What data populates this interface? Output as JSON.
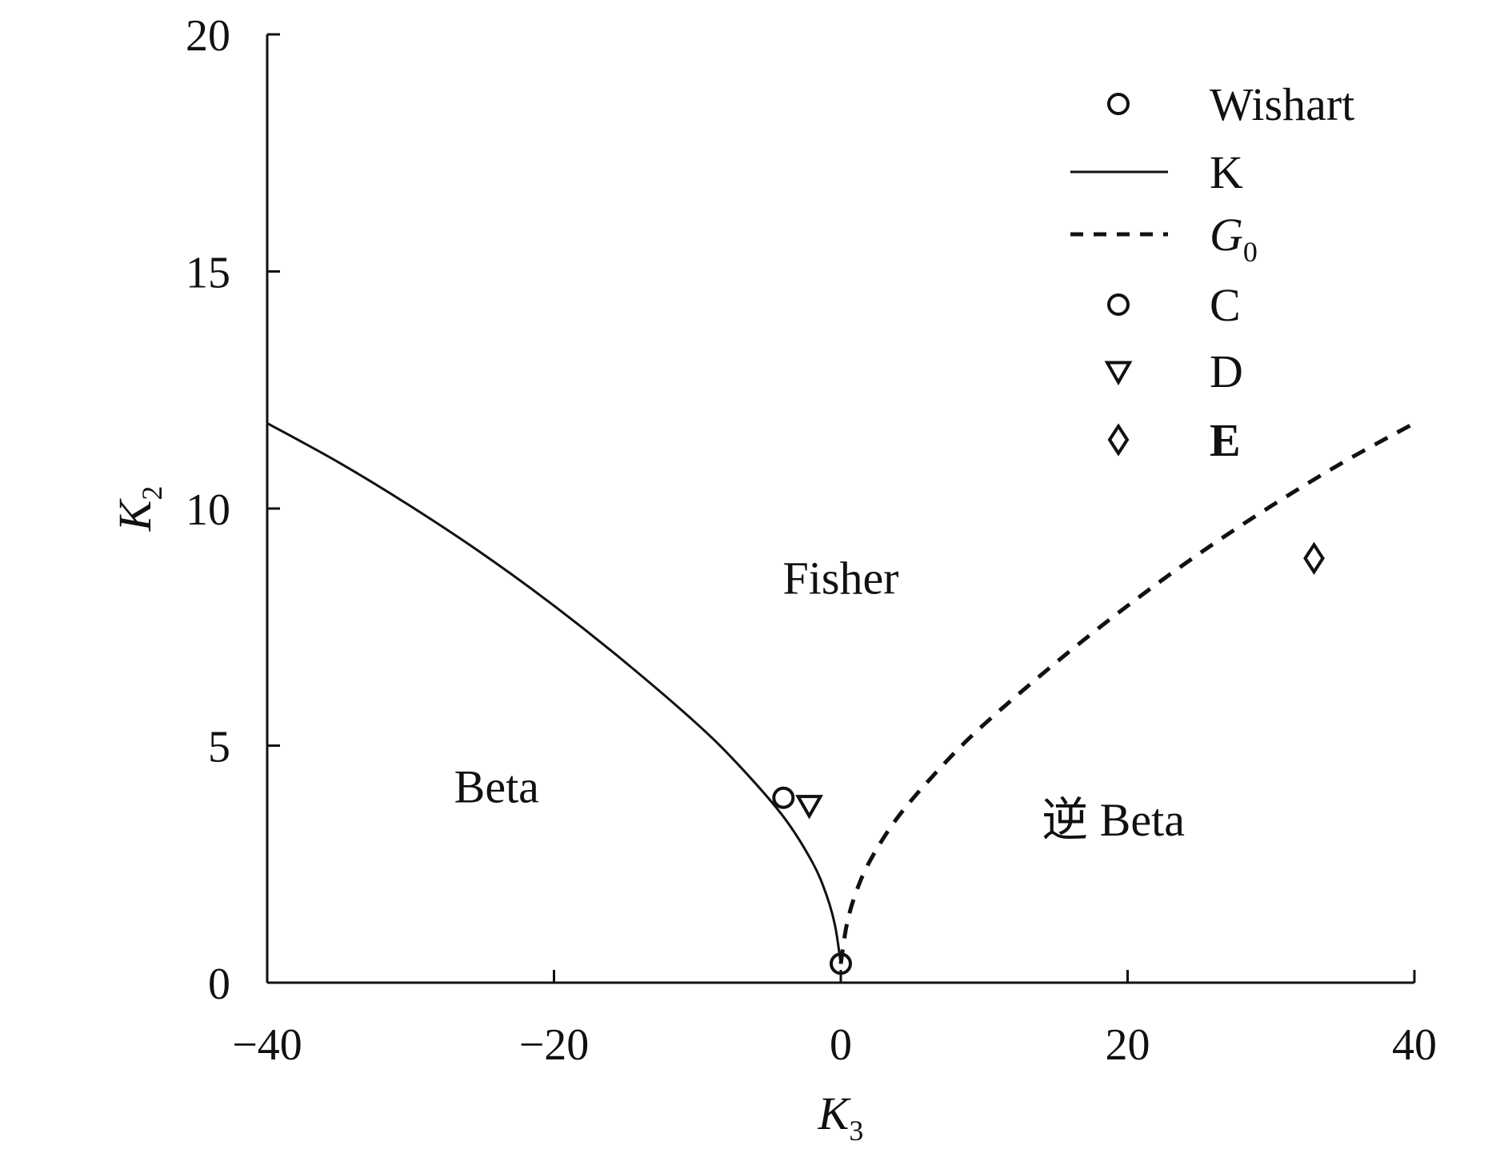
{
  "chart_data": {
    "type": "scatter",
    "title": "",
    "xlabel": {
      "main": "K",
      "sub": "3"
    },
    "ylabel": {
      "main": "K",
      "sub": "2"
    },
    "xlim": [
      -40,
      40
    ],
    "ylim": [
      0,
      20
    ],
    "x_ticks": [
      -40,
      -20,
      0,
      20,
      40
    ],
    "x_tick_labels": [
      "−40",
      "−20",
      "0",
      "20",
      "40"
    ],
    "y_ticks": [
      0,
      5,
      10,
      15,
      20
    ],
    "y_tick_labels": [
      "0",
      "5",
      "10",
      "15",
      "20"
    ],
    "grid": false,
    "legend_position": "top-right",
    "series": [
      {
        "name": "Wishart",
        "marker": "circle",
        "points": [
          {
            "x": 0,
            "y": 0.4
          }
        ]
      },
      {
        "name": "K",
        "line": "solid",
        "points": [
          {
            "x": -40,
            "y": 11.8
          },
          {
            "x": -35,
            "y": 10.97
          },
          {
            "x": -30,
            "y": 10.05
          },
          {
            "x": -25,
            "y": 9.05
          },
          {
            "x": -20,
            "y": 7.95
          },
          {
            "x": -15,
            "y": 6.75
          },
          {
            "x": -10,
            "y": 5.45
          },
          {
            "x": -7,
            "y": 4.55
          },
          {
            "x": -4,
            "y": 3.5
          },
          {
            "x": -2,
            "y": 2.55
          },
          {
            "x": -1,
            "y": 1.85
          },
          {
            "x": -0.4,
            "y": 1.2
          },
          {
            "x": 0,
            "y": 0.4
          }
        ]
      },
      {
        "name": "G0",
        "name_main": "G",
        "name_sub": "0",
        "line": "dashed",
        "points": [
          {
            "x": 0,
            "y": 0.4
          },
          {
            "x": 0.4,
            "y": 1.2
          },
          {
            "x": 1,
            "y": 1.85
          },
          {
            "x": 2,
            "y": 2.55
          },
          {
            "x": 4,
            "y": 3.5
          },
          {
            "x": 7,
            "y": 4.55
          },
          {
            "x": 10,
            "y": 5.45
          },
          {
            "x": 15,
            "y": 6.75
          },
          {
            "x": 20,
            "y": 7.95
          },
          {
            "x": 25,
            "y": 9.05
          },
          {
            "x": 30,
            "y": 10.05
          },
          {
            "x": 35,
            "y": 10.97
          },
          {
            "x": 40,
            "y": 11.8
          }
        ]
      },
      {
        "name": "C",
        "marker": "circle",
        "points": [
          {
            "x": -4,
            "y": 3.9
          }
        ]
      },
      {
        "name": "D",
        "marker": "triangle-down",
        "points": [
          {
            "x": -2.2,
            "y": 3.75
          }
        ]
      },
      {
        "name": "E",
        "marker": "diamond",
        "points": [
          {
            "x": 33,
            "y": 8.95
          }
        ]
      }
    ],
    "annotations": [
      {
        "text": "Fisher",
        "x": 0,
        "y": 8.2
      },
      {
        "text": "Beta",
        "x": -24,
        "y": 3.8
      },
      {
        "text": "逆 Beta",
        "x": 19,
        "y": 3.1
      }
    ],
    "colors": {
      "ink": "#111111",
      "background": "#ffffff"
    }
  }
}
